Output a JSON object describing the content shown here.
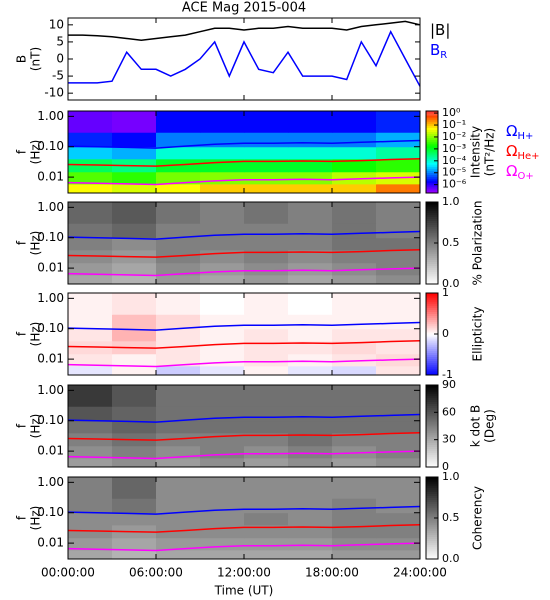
{
  "x_axis": {
    "xlim": [
      0,
      24
    ],
    "xticks": [
      {
        "value": 0,
        "label": "00:00:00"
      },
      {
        "value": 6,
        "label": "06:00:00"
      },
      {
        "value": 12,
        "label": "12:00:00"
      },
      {
        "value": 18,
        "label": "18:00:00"
      },
      {
        "value": 24,
        "label": "24:00:00"
      }
    ],
    "xlabel": "Time (UT)"
  },
  "gyrofrequencies": {
    "x": [
      0,
      2,
      4,
      6,
      8,
      10,
      12,
      14,
      16,
      18,
      20,
      22,
      24
    ],
    "series": [
      {
        "name": "Ω",
        "subscript": "H+",
        "color": "#0000ff",
        "values": [
          0.105,
          0.1,
          0.095,
          0.09,
          0.105,
          0.12,
          0.13,
          0.13,
          0.135,
          0.13,
          0.14,
          0.15,
          0.16
        ]
      },
      {
        "name": "Ω",
        "subscript": "He+",
        "color": "#ff0000",
        "values": [
          0.026,
          0.025,
          0.024,
          0.023,
          0.026,
          0.03,
          0.033,
          0.033,
          0.034,
          0.033,
          0.035,
          0.038,
          0.04
        ]
      },
      {
        "name": "Ω",
        "subscript": "O+",
        "color": "#ff00ff",
        "values": [
          0.0066,
          0.0063,
          0.006,
          0.0057,
          0.0066,
          0.0075,
          0.0082,
          0.0082,
          0.0085,
          0.0082,
          0.0088,
          0.0094,
          0.01
        ]
      }
    ]
  },
  "chart_data": [
    {
      "type": "line",
      "title": "ACE Mag 2015-004",
      "ylabel": [
        "B",
        "(nT)"
      ],
      "ylim": [
        -12,
        12
      ],
      "yticks": [
        -10,
        -5,
        0,
        5,
        10
      ],
      "x": [
        0,
        1,
        2,
        3,
        4,
        5,
        6,
        7,
        8,
        9,
        10,
        11,
        12,
        13,
        14,
        15,
        16,
        17,
        18,
        19,
        20,
        21,
        22,
        23,
        24
      ],
      "series": [
        {
          "name": "|B|",
          "color": "#000000",
          "values": [
            7,
            7,
            6.8,
            6.5,
            6,
            5.5,
            6,
            6.5,
            7,
            8,
            9,
            9,
            8.5,
            9,
            9,
            9.5,
            9,
            9,
            9,
            8.5,
            9.5,
            10,
            10.5,
            11,
            10
          ]
        },
        {
          "name": "B",
          "subscript": "R",
          "color": "#0000ff",
          "values": [
            -7,
            -7,
            -7,
            -6.5,
            2,
            -3,
            -3,
            -5,
            -3,
            0,
            5,
            -5,
            5,
            -3,
            -4,
            2,
            -5,
            -5,
            -5,
            -6,
            5,
            -2,
            8,
            0,
            -8
          ]
        }
      ]
    },
    {
      "type": "spectrogram",
      "ylabel": [
        "f",
        "(Hz)"
      ],
      "ylog": true,
      "ylim": [
        0.003,
        1.5
      ],
      "yticks": [
        {
          "value": 1,
          "label": "1.00"
        },
        {
          "value": 0.1,
          "label": "0.10"
        },
        {
          "value": 0.01,
          "label": "0.01"
        }
      ],
      "time_edges": [
        0,
        3,
        6,
        9,
        12,
        15,
        18,
        21,
        24
      ],
      "freq_edges": [
        0.003,
        0.006,
        0.015,
        0.04,
        0.1,
        0.3,
        1.5
      ],
      "colorbar": {
        "label": [
          "Intensity",
          "(nT²/Hz)"
        ],
        "colormap": "rainbow",
        "zlog": true,
        "zlim": [
          2e-07,
          1.5
        ],
        "zticks": [
          {
            "value": 1,
            "label": "10⁰"
          },
          {
            "value": 0.1,
            "label": "10⁻¹"
          },
          {
            "value": 0.01,
            "label": "10⁻²"
          },
          {
            "value": 0.001,
            "label": "10⁻³"
          },
          {
            "value": 0.0001,
            "label": "10⁻⁴"
          },
          {
            "value": 1e-05,
            "label": "10⁻⁵"
          },
          {
            "value": 1e-06,
            "label": "10⁻⁶"
          }
        ]
      },
      "legend": true,
      "z": [
        [
          0.05,
          0.03,
          0.05,
          0.1,
          0.1,
          0.1,
          0.1,
          0.3
        ],
        [
          0.005,
          0.003,
          0.008,
          0.01,
          0.01,
          0.01,
          0.02,
          0.03
        ],
        [
          0.0005,
          0.0003,
          0.001,
          0.001,
          0.001,
          0.001,
          0.002,
          0.003
        ],
        [
          3e-05,
          2e-05,
          0.0001,
          0.0001,
          0.0001,
          0.0001,
          0.0001,
          0.0002
        ],
        [
          3e-06,
          2e-06,
          1e-05,
          1e-05,
          1e-05,
          1e-05,
          1e-05,
          2e-05
        ],
        [
          5e-07,
          4e-07,
          2e-06,
          2e-06,
          2e-06,
          2e-06,
          2e-06,
          3e-06
        ]
      ]
    },
    {
      "type": "spectrogram",
      "ylabel": [
        "f",
        "(Hz)"
      ],
      "ylog": true,
      "ylim": [
        0.003,
        1.5
      ],
      "yticks": [
        {
          "value": 1,
          "label": "1.00"
        },
        {
          "value": 0.1,
          "label": "0.10"
        },
        {
          "value": 0.01,
          "label": "0.01"
        }
      ],
      "time_edges": [
        0,
        3,
        6,
        9,
        12,
        15,
        18,
        21,
        24
      ],
      "freq_edges": [
        0.003,
        0.006,
        0.015,
        0.04,
        0.1,
        0.3,
        1.5
      ],
      "colorbar": {
        "label": [
          "% Polarization"
        ],
        "colormap": "gray",
        "zlim": [
          0,
          1
        ],
        "zticks": [
          {
            "value": 0,
            "label": "0.0"
          },
          {
            "value": 0.5,
            "label": "0.5"
          },
          {
            "value": 1,
            "label": "1.0"
          }
        ]
      },
      "z": [
        [
          0.35,
          0.3,
          0.4,
          0.35,
          0.4,
          0.35,
          0.4,
          0.45
        ],
        [
          0.4,
          0.35,
          0.45,
          0.4,
          0.45,
          0.4,
          0.45,
          0.5
        ],
        [
          0.45,
          0.4,
          0.5,
          0.45,
          0.5,
          0.45,
          0.5,
          0.5
        ],
        [
          0.5,
          0.45,
          0.5,
          0.5,
          0.5,
          0.5,
          0.55,
          0.55
        ],
        [
          0.55,
          0.6,
          0.5,
          0.5,
          0.5,
          0.5,
          0.55,
          0.5
        ],
        [
          0.6,
          0.65,
          0.55,
          0.5,
          0.55,
          0.5,
          0.55,
          0.5
        ]
      ]
    },
    {
      "type": "spectrogram",
      "ylabel": [
        "f",
        "(Hz)"
      ],
      "ylog": true,
      "ylim": [
        0.003,
        1.5
      ],
      "yticks": [
        {
          "value": 1,
          "label": "1.00"
        },
        {
          "value": 0.1,
          "label": "0.10"
        },
        {
          "value": 0.01,
          "label": "0.01"
        }
      ],
      "time_edges": [
        0,
        3,
        6,
        9,
        12,
        15,
        18,
        21,
        24
      ],
      "freq_edges": [
        0.003,
        0.006,
        0.015,
        0.04,
        0.1,
        0.3,
        1.5
      ],
      "colorbar": {
        "label": [
          "Ellipticity"
        ],
        "colormap": "bwr",
        "zlim": [
          -1,
          1
        ],
        "zticks": [
          1,
          0,
          -1
        ]
      },
      "z": [
        [
          -0.1,
          0.05,
          -0.2,
          -0.1,
          0.05,
          -0.1,
          -0.15,
          0.1
        ],
        [
          0.1,
          0.05,
          0.1,
          0.05,
          0.1,
          0.05,
          0.1,
          0.15
        ],
        [
          0.15,
          0.2,
          0.1,
          0.05,
          0.1,
          0.1,
          0.15,
          0.1
        ],
        [
          0.1,
          0.3,
          0.1,
          0.05,
          0.1,
          0.05,
          0.1,
          0.1
        ],
        [
          0.05,
          0.25,
          0.15,
          0.05,
          0.05,
          0.05,
          0.05,
          0.05
        ],
        [
          0.05,
          0.1,
          0.05,
          0,
          0.05,
          0,
          0.05,
          0.05
        ]
      ]
    },
    {
      "type": "spectrogram",
      "ylabel": [
        "f",
        "(Hz)"
      ],
      "ylog": true,
      "ylim": [
        0.003,
        1.5
      ],
      "yticks": [
        {
          "value": 1,
          "label": "1.00"
        },
        {
          "value": 0.1,
          "label": "0.10"
        },
        {
          "value": 0.01,
          "label": "0.01"
        }
      ],
      "time_edges": [
        0,
        3,
        6,
        9,
        12,
        15,
        18,
        21,
        24
      ],
      "freq_edges": [
        0.003,
        0.006,
        0.015,
        0.04,
        0.1,
        0.3,
        1.5
      ],
      "colorbar": {
        "label": [
          "k dot B",
          "(Deg)"
        ],
        "colormap": "gray",
        "zlim": [
          0,
          90
        ],
        "zticks": [
          0,
          30,
          60,
          90
        ]
      },
      "z": [
        [
          35,
          40,
          35,
          40,
          35,
          40,
          35,
          40
        ],
        [
          40,
          45,
          40,
          45,
          40,
          45,
          40,
          45
        ],
        [
          45,
          50,
          45,
          45,
          45,
          50,
          45,
          45
        ],
        [
          50,
          55,
          50,
          50,
          50,
          50,
          50,
          50
        ],
        [
          60,
          55,
          50,
          50,
          50,
          50,
          50,
          50
        ],
        [
          70,
          60,
          50,
          50,
          50,
          50,
          50,
          50
        ]
      ]
    },
    {
      "type": "spectrogram",
      "ylabel": [
        "f",
        "(Hz)"
      ],
      "ylog": true,
      "ylim": [
        0.003,
        1.5
      ],
      "yticks": [
        {
          "value": 1,
          "label": "1.00"
        },
        {
          "value": 0.1,
          "label": "0.10"
        },
        {
          "value": 0.01,
          "label": "0.01"
        }
      ],
      "time_edges": [
        0,
        3,
        6,
        9,
        12,
        15,
        18,
        21,
        24
      ],
      "freq_edges": [
        0.003,
        0.006,
        0.015,
        0.04,
        0.1,
        0.3,
        1.5
      ],
      "colorbar": {
        "label": [
          "Coherency"
        ],
        "colormap": "gray",
        "zlim": [
          0,
          1
        ],
        "zticks": [
          {
            "value": 0,
            "label": "0.0"
          },
          {
            "value": 0.5,
            "label": "0.5"
          },
          {
            "value": 1,
            "label": "1.0"
          }
        ]
      },
      "z": [
        [
          0.35,
          0.3,
          0.35,
          0.35,
          0.35,
          0.35,
          0.4,
          0.4
        ],
        [
          0.4,
          0.35,
          0.4,
          0.4,
          0.4,
          0.4,
          0.45,
          0.45
        ],
        [
          0.45,
          0.4,
          0.45,
          0.45,
          0.45,
          0.45,
          0.5,
          0.5
        ],
        [
          0.45,
          0.45,
          0.45,
          0.45,
          0.5,
          0.45,
          0.5,
          0.5
        ],
        [
          0.5,
          0.55,
          0.45,
          0.45,
          0.45,
          0.45,
          0.5,
          0.45
        ],
        [
          0.5,
          0.6,
          0.45,
          0.45,
          0.45,
          0.45,
          0.45,
          0.45
        ]
      ]
    }
  ]
}
